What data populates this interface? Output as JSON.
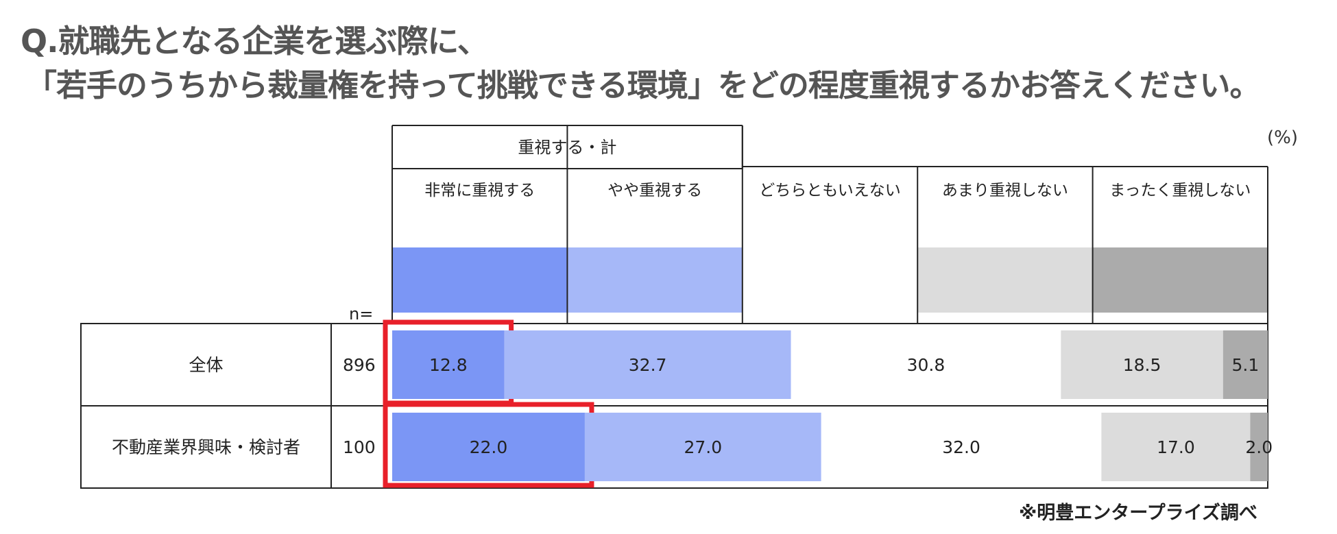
{
  "title": {
    "line1": "Q.就職先となる企業を選ぶ際に、",
    "line2": "「若手のうちから裁量権を持って挑戦できる環境」をどの程度重視するかお答えください。"
  },
  "unit_label": "(%)",
  "source_note": "※明豊エンタープライズ調べ",
  "chart_data": {
    "type": "bar",
    "stacked": true,
    "orientation": "horizontal",
    "normalized": true,
    "n_label": "n=",
    "group_label": "重視する・計",
    "categories": [
      "全体",
      "不動産業界興味・検討者"
    ],
    "n": [
      896,
      100
    ],
    "series": [
      {
        "name": "非常に重視する",
        "values": [
          12.8,
          22.0
        ],
        "color": "#7b96f5",
        "highlight": true
      },
      {
        "name": "やや重視する",
        "values": [
          32.7,
          27.0
        ],
        "color": "#a6b8f8"
      },
      {
        "name": "どちらともいえない",
        "values": [
          30.8,
          32.0
        ],
        "color": "#ffffff"
      },
      {
        "name": "あまり重視しない",
        "values": [
          18.5,
          17.0
        ],
        "color": "#dcdcdc"
      },
      {
        "name": "まったく重視しない",
        "values": [
          5.1,
          2.0
        ],
        "color": "#ababab"
      }
    ],
    "highlight_color": "#e8202a"
  }
}
